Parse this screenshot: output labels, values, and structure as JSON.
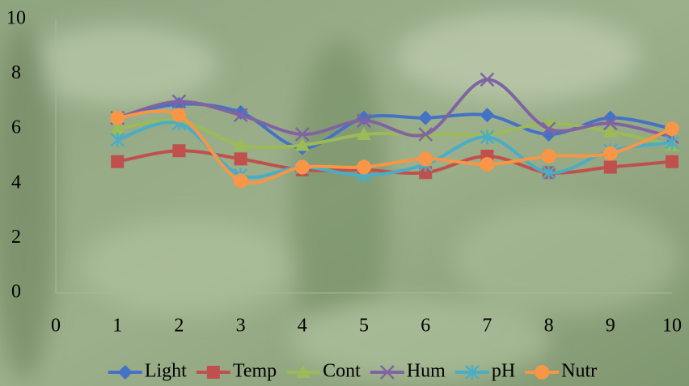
{
  "chart_data": {
    "type": "line",
    "smooth": true,
    "legend": "bottom",
    "x": [
      1,
      2,
      3,
      4,
      5,
      6,
      7,
      8,
      9,
      10
    ],
    "xlim": [
      0,
      10
    ],
    "xticks": [
      0,
      1,
      2,
      3,
      4,
      5,
      6,
      7,
      8,
      9,
      10
    ],
    "ylim": [
      0,
      10
    ],
    "yticks": [
      0,
      2,
      4,
      6,
      8,
      10
    ],
    "series": [
      {
        "name": "Light",
        "color": "#4472c4",
        "marker": "diamond",
        "values": [
          6.4,
          6.9,
          6.6,
          5.3,
          6.4,
          6.4,
          6.5,
          5.8,
          6.4,
          6.0
        ]
      },
      {
        "name": "Temp",
        "color": "#c0504d",
        "marker": "square",
        "values": [
          4.8,
          5.2,
          4.9,
          4.5,
          4.5,
          4.4,
          5.0,
          4.4,
          4.6,
          4.8
        ]
      },
      {
        "name": "Cont",
        "color": "#9bbb59",
        "marker": "triangle",
        "values": [
          6.0,
          6.3,
          5.4,
          5.4,
          5.8,
          5.8,
          5.8,
          6.2,
          5.9,
          5.4
        ]
      },
      {
        "name": "Hum",
        "color": "#8064a2",
        "marker": "x",
        "values": [
          6.4,
          7.0,
          6.5,
          5.8,
          6.3,
          5.8,
          7.8,
          6.0,
          6.2,
          5.7
        ]
      },
      {
        "name": "pH",
        "color": "#4bacc6",
        "marker": "star",
        "values": [
          5.6,
          6.2,
          4.3,
          4.6,
          4.3,
          4.7,
          5.7,
          4.4,
          5.2,
          5.5
        ]
      },
      {
        "name": "Nutr",
        "color": "#f79646",
        "marker": "circle",
        "values": [
          6.4,
          6.5,
          4.1,
          4.6,
          4.6,
          4.9,
          4.7,
          5.0,
          5.1,
          6.0
        ]
      }
    ]
  }
}
